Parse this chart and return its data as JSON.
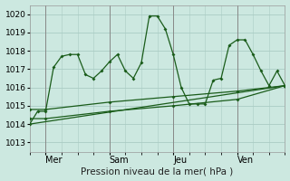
{
  "xlabel": "Pression niveau de la mer( hPa )",
  "background_color": "#cce8e0",
  "grid_color": "#aaccc4",
  "line_color": "#1a5c1a",
  "vline_color": "#888888",
  "xlim": [
    0,
    96
  ],
  "ylim": [
    1012.5,
    1020.5
  ],
  "yticks": [
    1013,
    1014,
    1015,
    1016,
    1017,
    1018,
    1019,
    1020
  ],
  "xtick_positions": [
    6,
    30,
    54,
    78
  ],
  "xtick_labels": [
    "Mer",
    "Sam",
    "Jeu",
    "Ven"
  ],
  "vlines": [
    6,
    30,
    54,
    78
  ],
  "series": [
    {
      "x": [
        0,
        3,
        6,
        9,
        12,
        15,
        18,
        21,
        24,
        27,
        30,
        33,
        36,
        39,
        42,
        45,
        48,
        51,
        54,
        57,
        60,
        63,
        66,
        69,
        72,
        75,
        78,
        81,
        84,
        87,
        90,
        93,
        96
      ],
      "y": [
        1014.0,
        1014.7,
        1014.7,
        1017.1,
        1017.7,
        1017.8,
        1017.8,
        1016.7,
        1016.5,
        1016.9,
        1017.4,
        1017.8,
        1016.9,
        1016.5,
        1017.35,
        1019.9,
        1019.9,
        1019.2,
        1017.8,
        1016.0,
        1015.1,
        1015.1,
        1015.1,
        1016.4,
        1016.5,
        1018.3,
        1018.6,
        1018.6,
        1017.8,
        1016.9,
        1016.1,
        1016.9,
        1016.1
      ],
      "marker": true
    },
    {
      "x": [
        0,
        6,
        30,
        54,
        78,
        96
      ],
      "y": [
        1014.8,
        1014.8,
        1015.2,
        1015.5,
        1015.8,
        1016.1
      ],
      "marker": true
    },
    {
      "x": [
        0,
        6,
        30,
        54,
        78,
        96
      ],
      "y": [
        1014.3,
        1014.3,
        1014.7,
        1015.0,
        1015.35,
        1016.1
      ],
      "marker": true
    },
    {
      "x": [
        0,
        96
      ],
      "y": [
        1014.0,
        1016.1
      ],
      "marker": false
    }
  ]
}
